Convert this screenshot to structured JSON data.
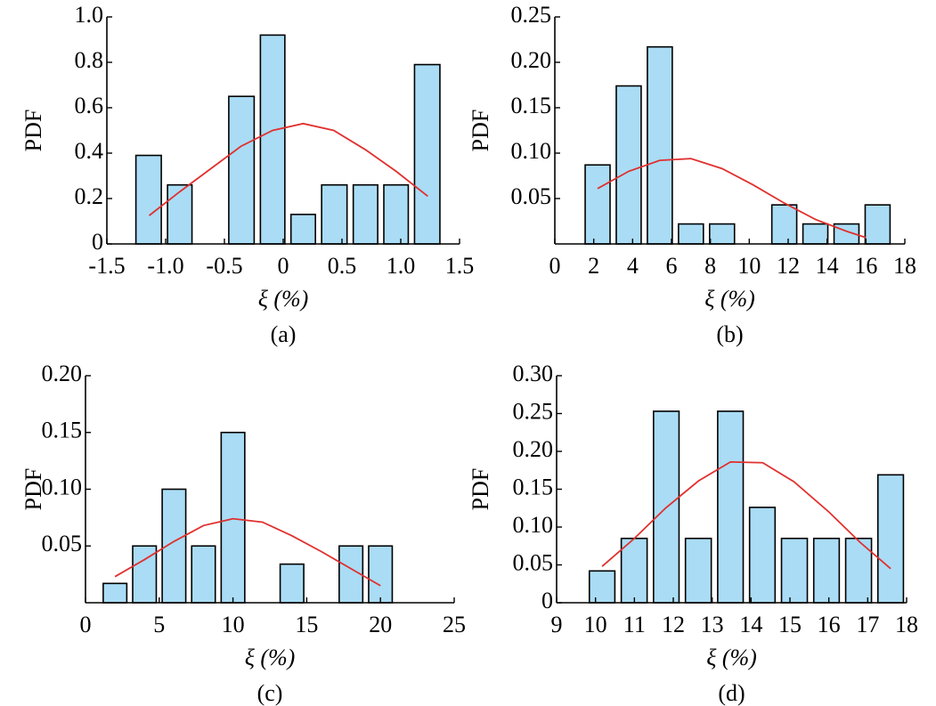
{
  "chart_data": [
    {
      "type": "histogram",
      "caption": "(a)",
      "xlabel": "ξ (%)",
      "ylabel": "PDF",
      "bins": [
        -1.28,
        -1.01,
        -0.75,
        -0.49,
        -0.22,
        0.04,
        0.3,
        0.57,
        0.83,
        1.09,
        1.36
      ],
      "values": [
        0.39,
        0.26,
        0,
        0.65,
        0.92,
        0.13,
        0.26,
        0.26,
        0.26,
        0.79
      ],
      "color": "#aadcf5",
      "edgecolor": "#000000",
      "curve": {
        "x": [
          -1.14,
          -0.88,
          -0.62,
          -0.36,
          -0.09,
          0.17,
          0.43,
          0.7,
          0.96,
          1.23
        ],
        "values": [
          0.125,
          0.23,
          0.33,
          0.43,
          0.5,
          0.53,
          0.5,
          0.415,
          0.32,
          0.21
        ],
        "color": "#e0302e"
      },
      "xlim": [
        -1.5,
        1.5
      ],
      "xticks": [
        -1.5,
        {
          "value": -1,
          "label": "-1.0"
        },
        -0.5,
        0,
        0.5,
        {
          "value": 1,
          "label": "1.0"
        },
        1.5
      ],
      "ylim": [
        0,
        1
      ],
      "yticks": [
        0,
        0.2,
        0.4,
        0.6,
        0.8,
        {
          "value": 1,
          "label": "1.0"
        }
      ]
    },
    {
      "type": "histogram",
      "caption": "(b)",
      "xlabel": "ξ (%)",
      "ylabel": "PDF",
      "bins": [
        1.4,
        3.0,
        4.6,
        6.2,
        7.8,
        9.4,
        11.0,
        12.6,
        14.2,
        15.8,
        17.4
      ],
      "values": [
        0.087,
        0.174,
        0.217,
        0.022,
        0.022,
        0,
        0.043,
        0.022,
        0.022,
        0.043
      ],
      "color": "#aadcf5",
      "edgecolor": "#000000",
      "curve": {
        "x": [
          2.2,
          3.8,
          5.4,
          7.0,
          8.6,
          10.2,
          11.8,
          13.4,
          15.0,
          16.0
        ],
        "values": [
          0.061,
          0.08,
          0.092,
          0.094,
          0.083,
          0.065,
          0.045,
          0.027,
          0.014,
          0.007
        ],
        "color": "#e0302e"
      },
      "xlim": [
        0,
        18
      ],
      "xticks": [
        0,
        2,
        4,
        6,
        8,
        10,
        12,
        14,
        16,
        18
      ],
      "ylim": [
        0,
        0.25
      ],
      "yticks": [
        0.05,
        {
          "value": 0.1,
          "label": "0.10"
        },
        0.15,
        {
          "value": 0.2,
          "label": "0.20"
        },
        0.25
      ]
    },
    {
      "type": "histogram",
      "caption": "(c)",
      "xlabel": "ξ (%)",
      "ylabel": "PDF",
      "bins": [
        1,
        3,
        5,
        7,
        9,
        11,
        13,
        15,
        17,
        19,
        21
      ],
      "values": [
        0.017,
        0.05,
        0.1,
        0.05,
        0.15,
        0,
        0.034,
        0,
        0.05,
        0.05
      ],
      "color": "#aadcf5",
      "edgecolor": "#000000",
      "curve": {
        "x": [
          2,
          4,
          6,
          8,
          10,
          12,
          14,
          16,
          18,
          20
        ],
        "values": [
          0.023,
          0.038,
          0.054,
          0.068,
          0.074,
          0.071,
          0.059,
          0.045,
          0.03,
          0.015
        ],
        "color": "#e0302e"
      },
      "xlim": [
        0,
        25
      ],
      "xticks": [
        0,
        5,
        10,
        15,
        20,
        25
      ],
      "ylim": [
        0,
        0.2
      ],
      "yticks": [
        0.05,
        {
          "value": 0.1,
          "label": "0.10"
        },
        0.15,
        {
          "value": 0.2,
          "label": "0.20"
        }
      ]
    },
    {
      "type": "histogram",
      "caption": "(d)",
      "xlabel": "ξ (%)",
      "ylabel": "PDF",
      "bins": [
        9.76,
        10.58,
        11.41,
        12.23,
        13.06,
        13.88,
        14.7,
        15.53,
        16.35,
        17.18,
        18.0
      ],
      "values": [
        0.042,
        0.085,
        0.253,
        0.085,
        0.253,
        0.126,
        0.085,
        0.085,
        0.085,
        0.169
      ],
      "color": "#aadcf5",
      "edgecolor": "#000000",
      "curve": {
        "x": [
          10.17,
          11.0,
          11.8,
          12.65,
          13.47,
          14.3,
          15.1,
          16.0,
          16.8,
          17.59
        ],
        "values": [
          0.048,
          0.085,
          0.125,
          0.161,
          0.186,
          0.185,
          0.16,
          0.12,
          0.08,
          0.045
        ],
        "color": "#e0302e"
      },
      "xlim": [
        9,
        18
      ],
      "xticks": [
        9,
        10,
        11,
        12,
        13,
        14,
        15,
        16,
        17,
        18
      ],
      "ylim": [
        0,
        0.3
      ],
      "yticks": [
        0,
        0.05,
        {
          "value": 0.1,
          "label": "0.10"
        },
        0.15,
        {
          "value": 0.2,
          "label": "0.20"
        },
        0.25,
        {
          "value": 0.3,
          "label": "0.30"
        }
      ]
    }
  ]
}
